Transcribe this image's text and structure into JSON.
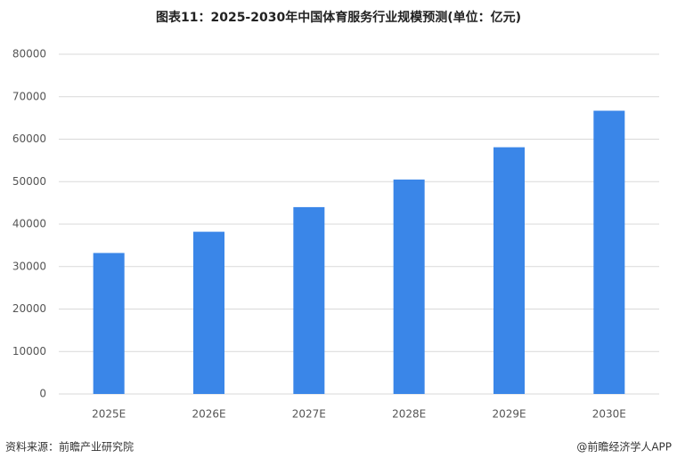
{
  "chart_data": {
    "type": "bar",
    "title": "图表11：2025-2030年中国体育服务行业规模预测(单位：亿元)",
    "categories": [
      "2025E",
      "2026E",
      "2027E",
      "2028E",
      "2029E",
      "2030E"
    ],
    "values": [
      33200,
      38200,
      44000,
      50500,
      58100,
      66700
    ],
    "color": "#3a86e8",
    "ylim": [
      0,
      80000
    ],
    "yticks": [
      0,
      10000,
      20000,
      30000,
      40000,
      50000,
      60000,
      70000,
      80000
    ],
    "grid": true,
    "source": "资料来源：前瞻产业研究院",
    "credit": "@前瞻经济学人APP"
  }
}
